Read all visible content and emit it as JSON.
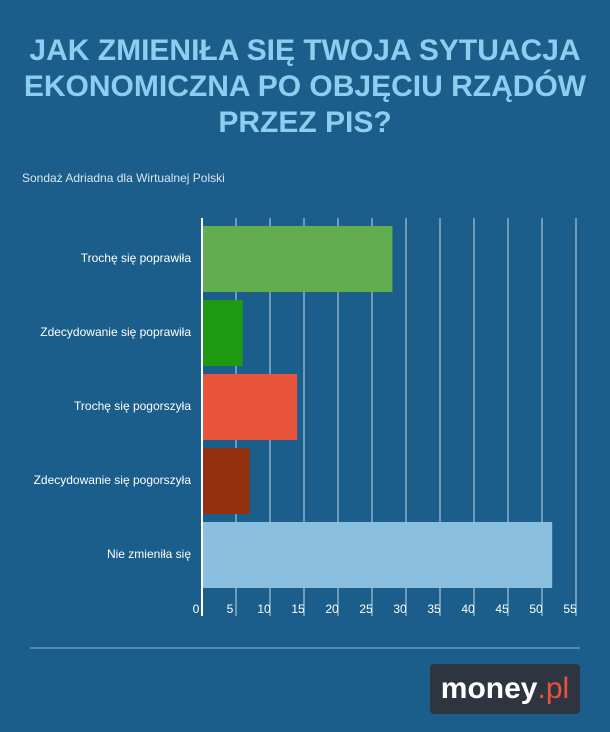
{
  "chart_data": {
    "type": "bar",
    "orientation": "horizontal",
    "title": [
      "JAK ZMIENIŁA SIĘ TWOJA SYTUACJA",
      "EKONOMICZNA PO OBJĘCIU RZĄDÓW",
      "PRZEZ PIS?"
    ],
    "subtitle": "Sondaż Adriadna dla Wirtualnej Polski",
    "categories": [
      "Trochę się poprawiła",
      "Zdecydowanie się poprawiła",
      "Trochę się pogorszyła",
      "Zdecydowanie się pogorszyła",
      "Nie zmieniła się"
    ],
    "values": [
      28,
      6,
      14,
      7,
      51.5
    ],
    "colors": [
      "#62ad4f",
      "#1e9a12",
      "#e8533b",
      "#93300e",
      "#8bbfdf"
    ],
    "xlim": [
      0,
      55
    ],
    "xticks": [
      0,
      5,
      10,
      15,
      20,
      25,
      30,
      35,
      40,
      45,
      50,
      55
    ],
    "grid": true,
    "logo": {
      "main": "money",
      "suffix": ".pl"
    }
  }
}
